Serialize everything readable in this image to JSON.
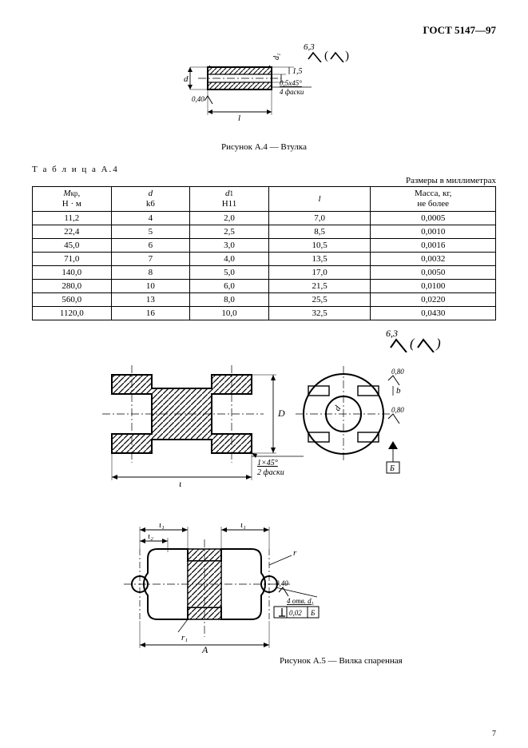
{
  "doc_code": "ГОСТ 5147—97",
  "figure_a4": {
    "caption": "Рисунок А.4 — Втулка",
    "surface_finish": "6,3",
    "chamfer_label": "0,5х45°",
    "chamfer_count": "4 фаски",
    "tol_label": "0,40",
    "wall_label": "1,5",
    "dim_d": "d",
    "dim_d1": "d₁",
    "dim_l": "l"
  },
  "table_a4": {
    "label": "Т а б л и ц а  А.4",
    "units": "Размеры в миллиметрах",
    "columns": [
      {
        "header_l1": "M",
        "header_sub": "кр",
        "header_l2": "Н · м"
      },
      {
        "header_l1": "d",
        "header_l2": "k6"
      },
      {
        "header_l1": "d",
        "header_sub": "1",
        "header_l2": "H11"
      },
      {
        "header_l1": "l",
        "header_l2": ""
      },
      {
        "header_l1": "Масса, кг,",
        "header_l2": "не более"
      }
    ],
    "rows": [
      [
        "11,2",
        "4",
        "2,0",
        "7,0",
        "0,0005"
      ],
      [
        "22,4",
        "5",
        "2,5",
        "8,5",
        "0,0010"
      ],
      [
        "45,0",
        "6",
        "3,0",
        "10,5",
        "0,0016"
      ],
      [
        "71,0",
        "7",
        "4,0",
        "13,5",
        "0,0032"
      ],
      [
        "140,0",
        "8",
        "5,0",
        "17,0",
        "0,0050"
      ],
      [
        "280,0",
        "10",
        "6,0",
        "21,5",
        "0,0100"
      ],
      [
        "560,0",
        "13",
        "8,0",
        "25,5",
        "0,0220"
      ],
      [
        "1120,0",
        "16",
        "10,0",
        "32,5",
        "0,0430"
      ]
    ]
  },
  "surface_finish_a5": "6,3",
  "figure_a5": {
    "caption": "Рисунок А.5 — Вилка спаренная",
    "dim_l": "ι",
    "dim_D": "D",
    "dim_d": "d",
    "dim_b": "b",
    "dim_A": "A",
    "dim_l1": "ι₁",
    "dim_l2": "ι₂",
    "dim_r": "r",
    "dim_r1": "r₁",
    "chamfer_label": "1×45°",
    "chamfer_count": "2 фаски",
    "holes_label": "4 отв. d₁",
    "tol_080": "0,80",
    "tol_040": "0,40",
    "gtol_value": "0,02",
    "datum": "Б"
  },
  "page_number": "7",
  "colors": {
    "stroke": "#000000",
    "hatch": "#000000",
    "bg": "#ffffff"
  }
}
